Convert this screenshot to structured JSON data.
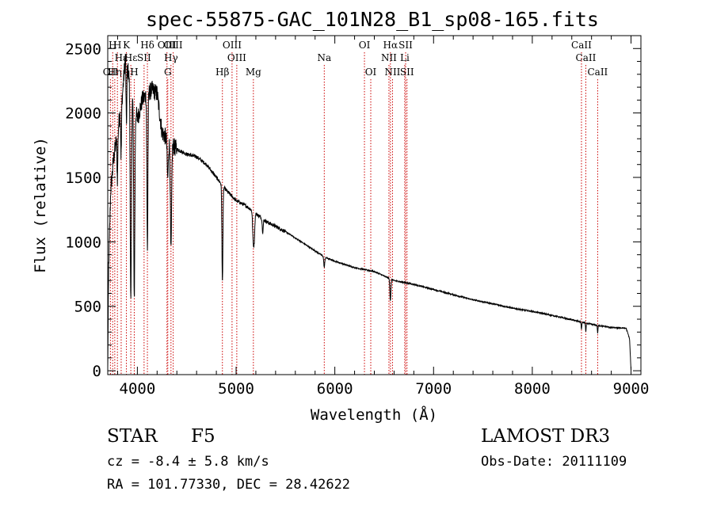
{
  "chart_data": {
    "type": "line",
    "title": "spec-55875-GAC_101N28_B1_sp08-165.fits",
    "xlabel": "Wavelength (Å)",
    "ylabel": "Flux (relative)",
    "xlim": [
      3700,
      9100
    ],
    "ylim": [
      -30,
      2600
    ],
    "x_ticks": [
      4000,
      5000,
      6000,
      7000,
      8000,
      9000
    ],
    "x_tick_labels": [
      "4000",
      "5000",
      "6000",
      "7000",
      "8000",
      "9000"
    ],
    "y_ticks": [
      0,
      500,
      1000,
      1500,
      2000,
      2500
    ],
    "y_tick_labels": [
      "0",
      "500",
      "1000",
      "1500",
      "2000",
      "2500"
    ],
    "continuum_knots": [
      [
        3700,
        0
      ],
      [
        3710,
        820
      ],
      [
        3730,
        1400
      ],
      [
        3760,
        1650
      ],
      [
        3800,
        1850
      ],
      [
        3850,
        2150
      ],
      [
        3880,
        2450
      ],
      [
        3900,
        2350
      ],
      [
        3950,
        2150
      ],
      [
        4000,
        1950
      ],
      [
        4050,
        2100
      ],
      [
        4100,
        2150
      ],
      [
        4150,
        2180
      ],
      [
        4200,
        2150
      ],
      [
        4250,
        1850
      ],
      [
        4300,
        1800
      ],
      [
        4350,
        1750
      ],
      [
        4400,
        1720
      ],
      [
        4500,
        1680
      ],
      [
        4600,
        1660
      ],
      [
        4700,
        1600
      ],
      [
        4800,
        1500
      ],
      [
        4900,
        1400
      ],
      [
        5000,
        1320
      ],
      [
        5100,
        1280
      ],
      [
        5200,
        1220
      ],
      [
        5300,
        1160
      ],
      [
        5400,
        1120
      ],
      [
        5500,
        1080
      ],
      [
        5600,
        1030
      ],
      [
        5700,
        980
      ],
      [
        5800,
        930
      ],
      [
        5900,
        880
      ],
      [
        6000,
        850
      ],
      [
        6200,
        800
      ],
      [
        6400,
        770
      ],
      [
        6600,
        700
      ],
      [
        6800,
        670
      ],
      [
        7000,
        630
      ],
      [
        7200,
        590
      ],
      [
        7400,
        550
      ],
      [
        7600,
        520
      ],
      [
        7800,
        485
      ],
      [
        8000,
        460
      ],
      [
        8200,
        430
      ],
      [
        8400,
        395
      ],
      [
        8600,
        360
      ],
      [
        8800,
        335
      ],
      [
        8950,
        330
      ],
      [
        8985,
        250
      ],
      [
        9000,
        0
      ]
    ],
    "absorption_features": [
      [
        3933.7,
        1700,
        6
      ],
      [
        3968.5,
        1500,
        6
      ],
      [
        4101.7,
        1200,
        5
      ],
      [
        4340.5,
        850,
        6
      ],
      [
        4307.9,
        300,
        6
      ],
      [
        4861.3,
        750,
        5
      ],
      [
        5172.7,
        200,
        6
      ],
      [
        5183.6,
        200,
        6
      ],
      [
        5892.9,
        80,
        5
      ],
      [
        6562.8,
        170,
        5
      ],
      [
        8498,
        60,
        3
      ],
      [
        8542,
        70,
        3
      ],
      [
        8662,
        60,
        3
      ],
      [
        3889,
        500,
        4
      ],
      [
        3835.4,
        400,
        4
      ],
      [
        3797.9,
        350,
        4
      ],
      [
        5269.5,
        100,
        5
      ]
    ],
    "line_markers": [
      {
        "label": "OII",
        "wavelength": 3727,
        "row": 3
      },
      {
        "label": "H",
        "wavelength": 3750,
        "row": 1
      },
      {
        "label": "Hη",
        "wavelength": 3771,
        "row": 3
      },
      {
        "label": "H",
        "wavelength": 3798,
        "row": 1
      },
      {
        "label": "Hε",
        "wavelength": 3836,
        "row": 2
      },
      {
        "label": "K",
        "wavelength": 3889,
        "row": 1
      },
      {
        "label": "Hε",
        "wavelength": 3933.7,
        "row": 2
      },
      {
        "label": "H",
        "wavelength": 3968.5,
        "row": 3
      },
      {
        "label": "SII",
        "wavelength": 4068,
        "row": 2
      },
      {
        "label": "Hδ",
        "wavelength": 4101.7,
        "row": 1
      },
      {
        "label": "OIII",
        "wavelength": 4300,
        "row": 1
      },
      {
        "label": "Hγ",
        "wavelength": 4340.5,
        "row": 2
      },
      {
        "label": "G",
        "wavelength": 4308,
        "row": 3
      },
      {
        "label": "OIII",
        "wavelength": 4363,
        "row": 1
      },
      {
        "label": "Hβ",
        "wavelength": 4861.3,
        "row": 3
      },
      {
        "label": "OIII",
        "wavelength": 4959,
        "row": 1
      },
      {
        "label": "OIII",
        "wavelength": 5007,
        "row": 2
      },
      {
        "label": "Mg",
        "wavelength": 5175,
        "row": 3
      },
      {
        "label": "Na",
        "wavelength": 5893,
        "row": 2
      },
      {
        "label": "OI",
        "wavelength": 6300,
        "row": 1
      },
      {
        "label": "OI",
        "wavelength": 6364,
        "row": 3
      },
      {
        "label": "Hα",
        "wavelength": 6563,
        "row": 1
      },
      {
        "label": "NII",
        "wavelength": 6548,
        "row": 2
      },
      {
        "label": "NII",
        "wavelength": 6584,
        "row": 3
      },
      {
        "label": "SII",
        "wavelength": 6717,
        "row": 1
      },
      {
        "label": "Li",
        "wavelength": 6708,
        "row": 2
      },
      {
        "label": "SII",
        "wavelength": 6731,
        "row": 3
      },
      {
        "label": "CaII",
        "wavelength": 8498,
        "row": 1
      },
      {
        "label": "CaII",
        "wavelength": 8542,
        "row": 2
      },
      {
        "label": "CaII",
        "wavelength": 8662,
        "row": 3
      }
    ]
  },
  "info": {
    "class_label": "STAR",
    "subclass": "F5",
    "survey": "LAMOST DR3",
    "redshift_text": "cz = -8.4 ± 5.8 km/s",
    "obs_date": "Obs-Date: 20111109",
    "coords": "RA = 101.77330, DEC =  28.42622"
  },
  "colors": {
    "line": "#000000",
    "marker": "#cc0000"
  }
}
